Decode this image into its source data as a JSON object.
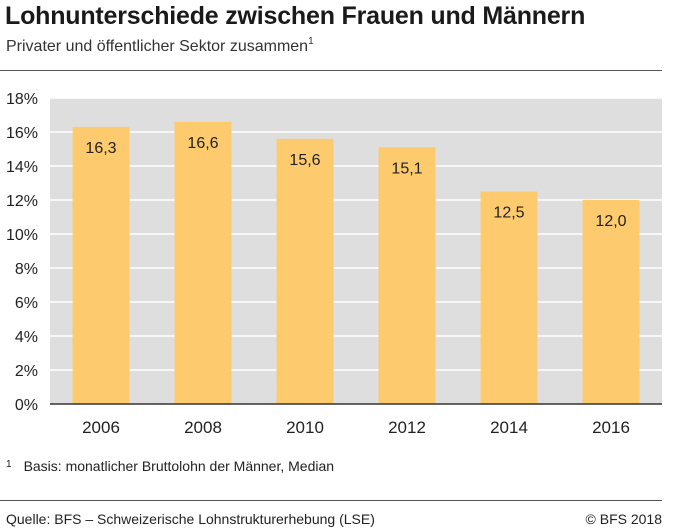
{
  "header": {
    "title": "Lohnunterschiede zwischen Frauen und Männern",
    "subtitle": "Privater und öffentlicher Sektor zusammen",
    "subtitle_footnote_mark": "1"
  },
  "chart_data": {
    "type": "bar",
    "title": "Lohnunterschiede zwischen Frauen und Männern",
    "subtitle": "Privater und öffentlicher Sektor zusammen",
    "categories": [
      "2006",
      "2008",
      "2010",
      "2012",
      "2014",
      "2016"
    ],
    "values": [
      16.3,
      16.6,
      15.6,
      15.1,
      12.5,
      12.0
    ],
    "value_labels": [
      "16,3",
      "16,6",
      "15,6",
      "15,1",
      "12,5",
      "12,0"
    ],
    "ylim": [
      0,
      18
    ],
    "yticks": [
      0,
      2,
      4,
      6,
      8,
      10,
      12,
      14,
      16,
      18
    ],
    "ytick_labels": [
      "0%",
      "2%",
      "4%",
      "6%",
      "8%",
      "10%",
      "12%",
      "14%",
      "16%",
      "18%"
    ],
    "xlabel": "",
    "ylabel": "",
    "grid": true,
    "colors": {
      "bar": "#fdcb6e",
      "plot_background": "#dedede",
      "grid": "#ffffff",
      "axis": "#333333"
    }
  },
  "footnote": {
    "mark": "1",
    "text": "Basis: monatlicher Bruttolohn der Männer, Median"
  },
  "footer": {
    "source": "Quelle: BFS – Schweizerische Lohnstrukturerhebung (LSE)",
    "copyright": "© BFS 2018"
  }
}
